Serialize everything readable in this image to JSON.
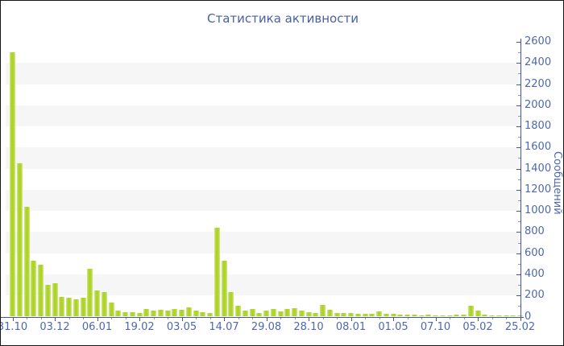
{
  "chart_data": {
    "type": "bar",
    "title": "Статистика активности",
    "ylabel": "Сообщений",
    "xlabel": "",
    "ylim": [
      0,
      2600
    ],
    "y_tick_step": 200,
    "y_minor_step": 100,
    "grid": "alternating horizontal bands every 200 units",
    "legend": "none",
    "x_tick_labels": [
      "31.10",
      "03.12",
      "06.01",
      "19.02",
      "03.05",
      "14.07",
      "29.08",
      "28.10",
      "08.01",
      "01.05",
      "07.10",
      "05.02",
      "25.02"
    ],
    "label_every_n_bars": 6,
    "values": [
      2500,
      1450,
      1040,
      530,
      490,
      300,
      315,
      190,
      180,
      165,
      180,
      450,
      250,
      230,
      130,
      60,
      40,
      45,
      36,
      75,
      60,
      65,
      60,
      75,
      65,
      85,
      55,
      40,
      36,
      840,
      530,
      230,
      105,
      55,
      76,
      38,
      55,
      76,
      50,
      76,
      80,
      55,
      42,
      36,
      110,
      68,
      38,
      38,
      32,
      26,
      26,
      24,
      48,
      28,
      24,
      20,
      18,
      20,
      15,
      18,
      15,
      12,
      15,
      18,
      20,
      100,
      60,
      20,
      15,
      12,
      15,
      12,
      15
    ],
    "colors": {
      "bar_main": "#aed32a",
      "bar_edge_light": "#d2e98c",
      "label_blue": "#4f68ad",
      "title_blue": "#49619f",
      "axis_line": "#47598c",
      "minor_tick": "#8d9ab9",
      "stripe_gray": "#f6f6f6",
      "background": "#ffffff"
    }
  }
}
